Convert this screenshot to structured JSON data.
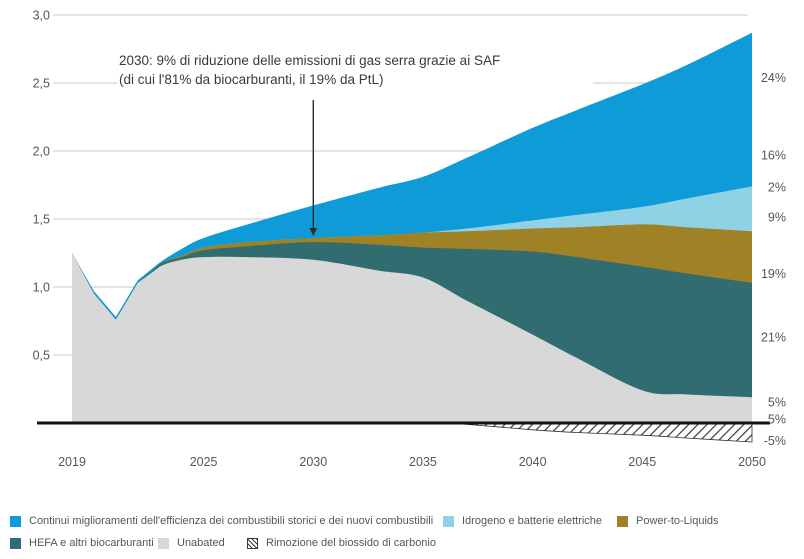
{
  "annotation": {
    "line1": "2030: 9% di riduzione delle emissioni di gas serra grazie ai SAF",
    "line2": "(di cui l'81% da biocarburanti, il 19% da PtL)",
    "arrow": {
      "year": 2030,
      "value_start": 2.375,
      "value_end": 1.375
    }
  },
  "chart_data": {
    "type": "area",
    "x": [
      2019,
      2020,
      2021,
      2022,
      2023,
      2024,
      2025,
      2027,
      2030,
      2033,
      2035,
      2037,
      2040,
      2042,
      2045,
      2047,
      2050
    ],
    "x_range": [
      2019,
      2050
    ],
    "y_range": [
      -0.2,
      3.0
    ],
    "grid": true,
    "series": [
      {
        "name": "Continui miglioramenti dell'efficienza dei combustibili storici e dei nuovi combustibili",
        "color": "#0F9BD7",
        "top": [
          1.25,
          0.97,
          0.78,
          1.05,
          1.18,
          1.28,
          1.36,
          1.46,
          1.6,
          1.73,
          1.81,
          1.95,
          2.17,
          2.3,
          2.49,
          2.63,
          2.87
        ]
      },
      {
        "name": "Idrogeno e batterie elettriche",
        "color": "#8FD2E5",
        "top": [
          1.25,
          0.95,
          0.76,
          1.03,
          1.17,
          1.23,
          1.29,
          1.33,
          1.36,
          1.38,
          1.4,
          1.43,
          1.49,
          1.53,
          1.59,
          1.65,
          1.74
        ]
      },
      {
        "name": "Power-to-Liquids",
        "color": "#9E8225",
        "top": [
          1.25,
          0.95,
          0.76,
          1.03,
          1.17,
          1.23,
          1.29,
          1.33,
          1.36,
          1.38,
          1.4,
          1.41,
          1.43,
          1.44,
          1.46,
          1.44,
          1.41
        ]
      },
      {
        "name": "HEFA e altri biocarburanti",
        "color": "#316C71",
        "top": [
          1.25,
          0.95,
          0.76,
          1.03,
          1.17,
          1.22,
          1.27,
          1.3,
          1.33,
          1.31,
          1.29,
          1.28,
          1.26,
          1.22,
          1.15,
          1.1,
          1.03
        ]
      },
      {
        "name": "Unabated",
        "color": "#D8D8D8",
        "top": [
          1.25,
          0.95,
          0.76,
          1.03,
          1.15,
          1.2,
          1.22,
          1.22,
          1.2,
          1.12,
          1.07,
          0.9,
          0.65,
          0.48,
          0.24,
          0.21,
          0.19
        ]
      }
    ],
    "cdr_series": {
      "name": "Rimozione del biossido di carbonio",
      "style": "hatched",
      "x": [
        2036,
        2037,
        2040,
        2042,
        2045,
        2047,
        2050
      ],
      "values": [
        0,
        -0.01,
        -0.05,
        -0.07,
        -0.09,
        -0.11,
        -0.14
      ]
    },
    "yticks": [
      {
        "label": "3,0",
        "value": 3.0
      },
      {
        "label": "2,5",
        "value": 2.5
      },
      {
        "label": "2,0",
        "value": 2.0
      },
      {
        "label": "1,5",
        "value": 1.5
      },
      {
        "label": "1,0",
        "value": 1.0
      },
      {
        "label": "0,5",
        "value": 0.5
      }
    ],
    "xticks": [
      {
        "label": "2019",
        "year": 2019
      },
      {
        "label": "2025",
        "year": 2025
      },
      {
        "label": "2030",
        "year": 2030
      },
      {
        "label": "2035",
        "year": 2035
      },
      {
        "label": "2040",
        "year": 2040
      },
      {
        "label": "2045",
        "year": 2045
      },
      {
        "label": "2050",
        "year": 2050
      }
    ],
    "right_labels": [
      {
        "text": "24%",
        "y": 2.54
      },
      {
        "text": "16%",
        "y": 1.97
      },
      {
        "text": "2%",
        "y": 1.735
      },
      {
        "text": "9%",
        "y": 1.515
      },
      {
        "text": "19%",
        "y": 1.1
      },
      {
        "text": "21%",
        "y": 0.632
      },
      {
        "text": "5%",
        "y": 0.154
      },
      {
        "text": "5%",
        "y": 0.03
      },
      {
        "text": "-5%",
        "y": -0.13
      }
    ],
    "legend": [
      {
        "label": "Continui miglioramenti dell'efficienza dei combustibili storici e dei nuovi combustibili",
        "color": "#0F9BD7",
        "swatch": "solid"
      },
      {
        "label": "Idrogeno e batterie elettriche",
        "color": "#8FD2E5",
        "swatch": "solid"
      },
      {
        "label": "Power-to-Liquids",
        "color": "#9E8225",
        "swatch": "solid"
      },
      {
        "label": "HEFA e altri biocarburanti",
        "color": "#316C71",
        "swatch": "solid"
      },
      {
        "label": "Unabated",
        "color": "#D8D8D8",
        "swatch": "solid"
      },
      {
        "label": "Rimozione del biossido di carbonio",
        "color": "",
        "swatch": "hatched"
      }
    ],
    "colors": {
      "axis": "#111111",
      "gridline": "#c9c9c9",
      "tick_text": "#55565a",
      "annotation_text": "#3a3a3a"
    }
  }
}
